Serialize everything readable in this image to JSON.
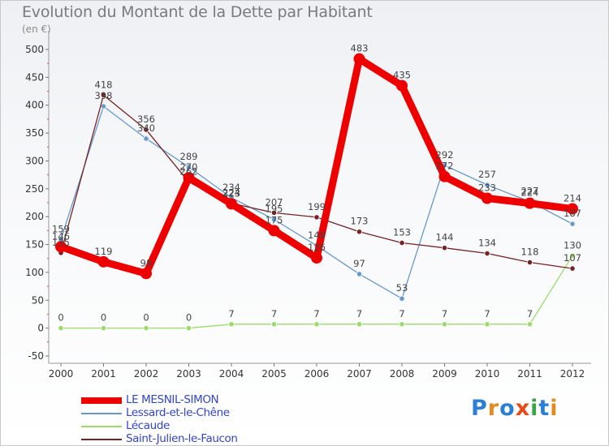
{
  "title": "Evolution du Montant de la Dette par Habitant",
  "subtitle": "(en €)",
  "logo_text": "Proxiti",
  "logo_colors": [
    "#2c7fd6",
    "#e58a1f",
    "#2c7fd6",
    "#e64a19",
    "#3aa34a",
    "#2c7fd6",
    "#e58a1f"
  ],
  "chart_data": {
    "type": "line",
    "categories": [
      "2000",
      "2001",
      "2002",
      "2003",
      "2004",
      "2005",
      "2006",
      "2007",
      "2008",
      "2009",
      "2010",
      "2011",
      "2012"
    ],
    "ylim": [
      -50,
      500
    ],
    "yticks": [
      "-50",
      "0",
      "50",
      "100",
      "150",
      "200",
      "250",
      "300",
      "350",
      "400",
      "450",
      "500"
    ],
    "xlabel": "",
    "ylabel": "",
    "grid": false,
    "legend_position": "bottom-left",
    "series": [
      {
        "name": "LE MESNIL-SIMON",
        "color": "#ee0000",
        "values": [
          146,
          119,
          98,
          270,
          223,
          175,
          126,
          483,
          435,
          272,
          233,
          224,
          214
        ],
        "labels": [
          "146",
          "119",
          "98",
          "270",
          "223",
          "175",
          "126",
          "483",
          "435",
          "272",
          "233",
          "224",
          "214"
        ]
      },
      {
        "name": "Lessard-et-le-Chêne",
        "color": "#6699cc",
        "values": [
          159,
          398,
          340,
          289,
          234,
          195,
          148,
          97,
          53,
          292,
          257,
          227,
          187
        ],
        "labels": [
          "159",
          "398",
          "340",
          "289",
          "234",
          "195",
          "148",
          "97",
          "53",
          "292",
          "257",
          "227",
          "187"
        ]
      },
      {
        "name": "Lécaude",
        "color": "#99dd66",
        "values": [
          0,
          0,
          0,
          0,
          7,
          7,
          7,
          7,
          7,
          7,
          7,
          7,
          130
        ],
        "labels": [
          "0",
          "0",
          "0",
          "0",
          "7",
          "7",
          "7",
          "7",
          "7",
          "7",
          "7",
          "7",
          "130"
        ]
      },
      {
        "name": "Saint-Julien-le-Faucon",
        "color": "#772222",
        "values": [
          135,
          418,
          356,
          262,
          224,
          207,
          199,
          173,
          153,
          144,
          134,
          118,
          107
        ],
        "labels": [
          "135",
          "418",
          "356",
          "262",
          "224",
          "207",
          "199",
          "173",
          "153",
          "144",
          "134",
          "118",
          "107"
        ]
      }
    ]
  }
}
